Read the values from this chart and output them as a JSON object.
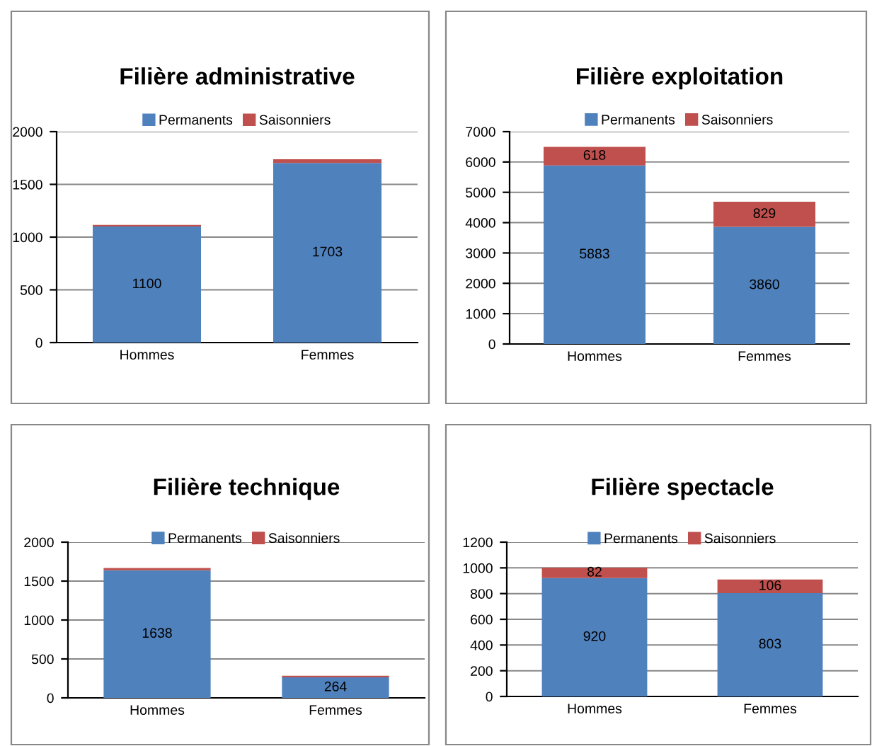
{
  "chart_data": [
    {
      "type": "bar",
      "title": "Filière administrative",
      "categories": [
        "Hommes",
        "Femmes"
      ],
      "stacked": true,
      "legend": "top",
      "grid": "y",
      "ylim": [
        0,
        2000
      ],
      "yticks": [
        0,
        500,
        1000,
        1500,
        2000
      ],
      "series": [
        {
          "name": "Permanents",
          "color": "#4f81bd",
          "values": [
            1100,
            1703
          ],
          "value_labels": [
            "1100",
            "1703"
          ]
        },
        {
          "name": "Saisonniers",
          "color": "#c0504d",
          "values": [
            15,
            35
          ]
        }
      ]
    },
    {
      "type": "bar",
      "title": "Filière exploitation",
      "categories": [
        "Hommes",
        "Femmes"
      ],
      "stacked": true,
      "legend": "top",
      "grid": "y",
      "ylim": [
        0,
        7000
      ],
      "yticks": [
        0,
        1000,
        2000,
        3000,
        4000,
        5000,
        6000,
        7000
      ],
      "series": [
        {
          "name": "Permanents",
          "color": "#4f81bd",
          "values": [
            5883,
            3860
          ],
          "value_labels": [
            "5883",
            "3860"
          ]
        },
        {
          "name": "Saisonniers",
          "color": "#c0504d",
          "values": [
            618,
            829
          ],
          "value_labels": [
            "618",
            "829"
          ]
        }
      ]
    },
    {
      "type": "bar",
      "title": "Filière technique",
      "categories": [
        "Hommes",
        "Femmes"
      ],
      "stacked": true,
      "legend": "top",
      "grid": "y",
      "ylim": [
        0,
        2000
      ],
      "yticks": [
        0,
        500,
        1000,
        1500,
        2000
      ],
      "series": [
        {
          "name": "Permanents",
          "color": "#4f81bd",
          "values": [
            1638,
            264
          ],
          "value_labels": [
            "1638",
            "264"
          ]
        },
        {
          "name": "Saisonniers",
          "color": "#c0504d",
          "values": [
            30,
            20
          ]
        }
      ]
    },
    {
      "type": "bar",
      "title": "Filière spectacle",
      "categories": [
        "Hommes",
        "Femmes"
      ],
      "stacked": true,
      "legend": "top",
      "grid": "y",
      "ylim": [
        0,
        1200
      ],
      "yticks": [
        0,
        200,
        400,
        600,
        800,
        1000,
        1200
      ],
      "series": [
        {
          "name": "Permanents",
          "color": "#4f81bd",
          "values": [
            920,
            803
          ],
          "value_labels": [
            "920",
            "803"
          ]
        },
        {
          "name": "Saisonniers",
          "color": "#c0504d",
          "values": [
            82,
            106
          ],
          "value_labels": [
            "82",
            "106"
          ]
        }
      ]
    }
  ]
}
